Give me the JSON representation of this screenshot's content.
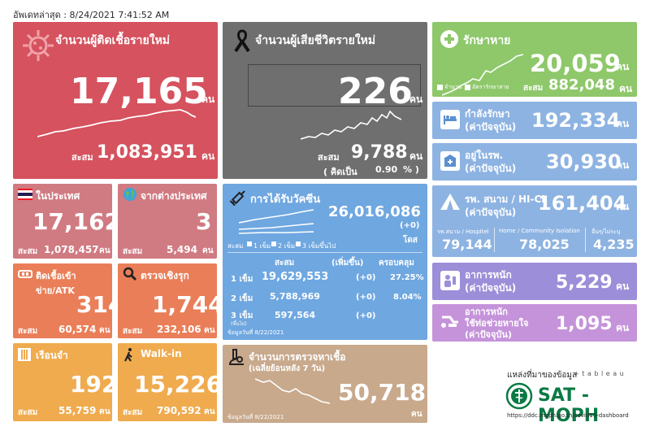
{
  "header": {
    "updated": "อัพเดทล่าสุด : 8/24/2021 7:41:52 AM"
  },
  "unit": "คน",
  "accum_label": "สะสม",
  "new_cases": {
    "title": "จำนวนผู้ติดเชื้อรายใหม่",
    "value": "17,165",
    "total": "1,083,951"
  },
  "deaths": {
    "title": "จำนวนผู้เสียชีวิตรายใหม่",
    "value": "226",
    "total": "9,788",
    "pct_prefix": "( คิดเป็น",
    "pct": "0.90",
    "pct_suffix": "% )"
  },
  "recovered": {
    "title": "รักษาหาย",
    "value": "20,059",
    "total": "882,048",
    "legend_a": "จำนวน",
    "legend_b": "อัตรารักษาหาย"
  },
  "treating": {
    "title": "กำลังรักษา",
    "sub": "(ค่าปัจจุบัน)",
    "value": "192,334"
  },
  "hospital": {
    "title": "อยู่ในรพ.",
    "sub": "(ค่าปัจจุบัน)",
    "value": "30,930"
  },
  "field": {
    "title": "รพ. สนาม / HI-CI",
    "sub": "(ค่าปัจจุบัน)",
    "value": "161,404",
    "cols": [
      {
        "label": "รพ.สนาม / Hospitel",
        "value": "79,144"
      },
      {
        "label": "Home / Community Isolation",
        "value": "78,025"
      },
      {
        "label": "อื่นๆ/ไม่ระบุ",
        "value": "4,235"
      }
    ]
  },
  "severe": {
    "title": "อาการหนัก",
    "sub": "(ค่าปัจจุบัน)",
    "value": "5,229"
  },
  "ventilator": {
    "title1": "อาการหนัก",
    "title2": "ใช้ท่อช่วยหายใจ",
    "sub": "(ค่าปัจจุบัน)",
    "value": "1,095"
  },
  "domestic": {
    "title": "ในประเทศ",
    "value": "17,162",
    "total": "1,078,457"
  },
  "abroad": {
    "title": "จากต่างประเทศ",
    "value": "3",
    "total": "5,494"
  },
  "prison": {
    "title": "ติดเชื้อเข้าข่าย/ATK",
    "value": "314",
    "total": "60,574"
  },
  "proactive": {
    "title": "ตรวจเชิงรุก",
    "value": "1,744",
    "total": "232,106"
  },
  "jail": {
    "title": "เรือนจำ",
    "value": "192",
    "total": "55,759"
  },
  "walkin": {
    "title": "Walk-in",
    "value": "15,226",
    "total": "790,592"
  },
  "vaccine": {
    "title": "การได้รับวัคซีน",
    "total": "26,016,086",
    "delta": "(+0)",
    "dose_unit": "โดส",
    "legend_prefix": "สะสม",
    "legend": [
      "1 เข็ม",
      "2 เข็ม",
      "3 เข็มขึ้นไป"
    ],
    "col_headers": [
      "สะสม",
      "(เพิ่มขึ้น)",
      "ครอบคลุม"
    ],
    "rows": [
      {
        "dose": "1 เข็ม",
        "total": "19,629,553",
        "delta": "(+0)",
        "cover": "27.25%"
      },
      {
        "dose": "2 เข็ม",
        "total": "5,788,969",
        "delta": "(+0)",
        "cover": "8.04%"
      },
      {
        "dose": "3 เข็ม",
        "total": "597,564",
        "delta": "(+0)",
        "cover": "",
        "note": "(ขึ้นไป)"
      }
    ],
    "data_date": "ข้อมูลวันที่ 8/22/2021"
  },
  "tests": {
    "title": "จำนวนการตรวจหาเชื้อ",
    "sub": "(เฉลี่ยย้อนหลัง 7 วัน)",
    "value": "50,718",
    "data_date": "ข้อมูลวันที่ 8/22/2021"
  },
  "source": {
    "label": "แหล่งที่มาของข้อมูล",
    "tableau": "+ t a b l e a u",
    "brand": "SAT - MOPH",
    "url": "https://ddc.moph.go.th/covid19-dashboard"
  }
}
